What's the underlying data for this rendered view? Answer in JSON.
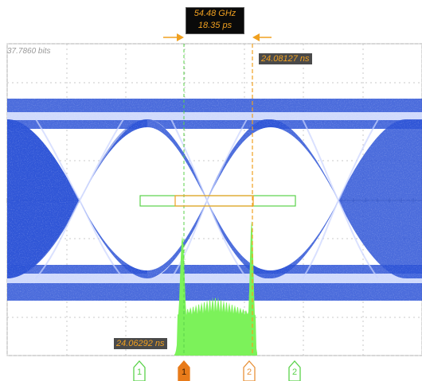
{
  "measurement": {
    "frequency": "54.48 GHz",
    "period": "18.35 ps"
  },
  "scale_label": "37.7860 bits",
  "cursor_readouts": {
    "right_time": "24.08127 ns",
    "left_time": "24.06292 ns"
  },
  "markers": [
    {
      "label": "1",
      "style": "outline",
      "color": "#5ad24a"
    },
    {
      "label": "1",
      "style": "filled",
      "color": "#e87b1a"
    },
    {
      "label": "2",
      "style": "outline",
      "color": "#e8923a"
    },
    {
      "label": "2",
      "style": "outline",
      "color": "#5ad24a"
    }
  ],
  "colors": {
    "eye_trace": "#2c52d6",
    "histogram": "#7cf25a",
    "cursor_orange": "#f0a020",
    "cursor_green": "#5ad24a",
    "grid": "#bdbdbd"
  }
}
